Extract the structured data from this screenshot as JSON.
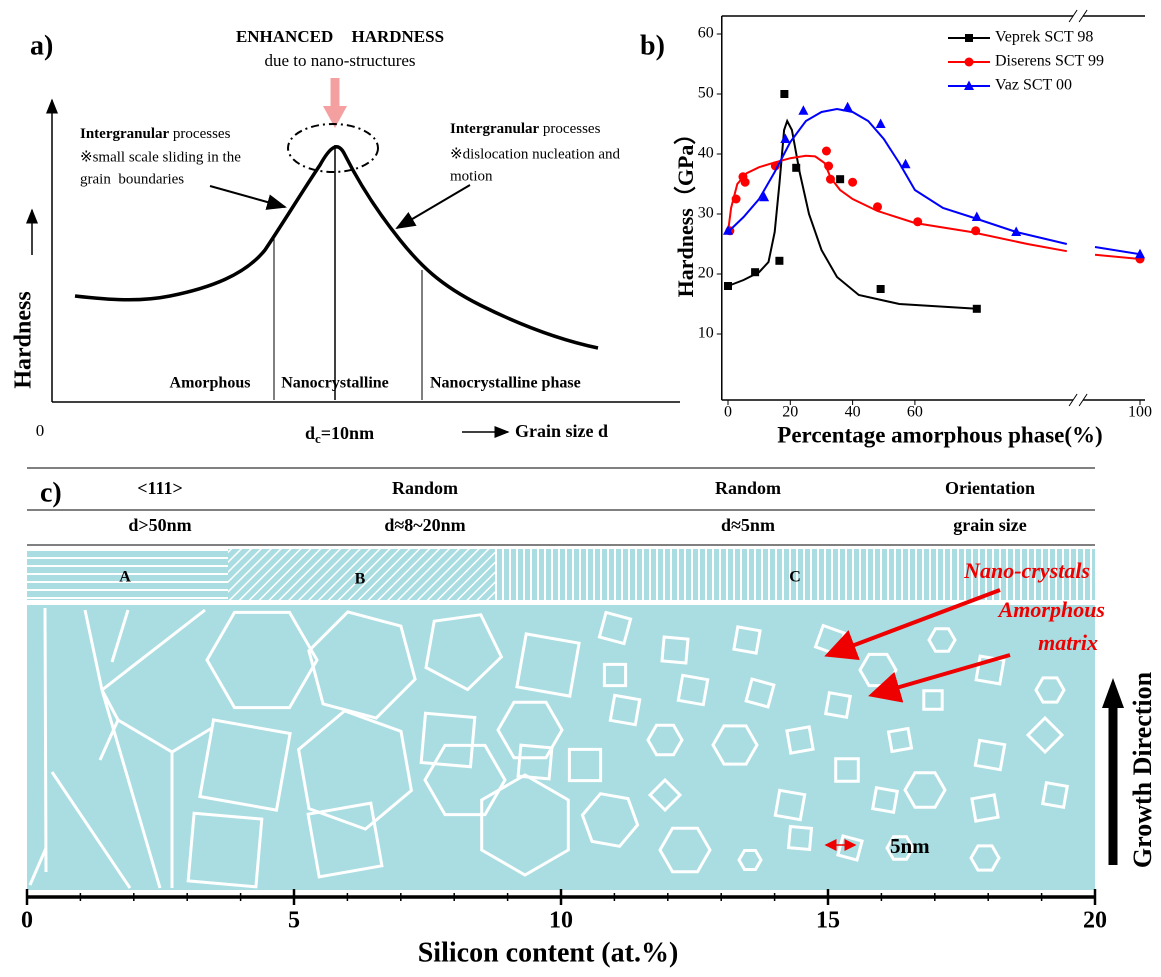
{
  "panel_a": {
    "label": "a)",
    "title": "ENHANCED HARDNESS",
    "subtitle": "due to nano-structures",
    "left_note": {
      "bold": "Intergranular",
      "text": " processes",
      "lines": [
        "※small scale sliding in the",
        "grain  boundaries"
      ]
    },
    "right_note": {
      "bold": "Intergranular",
      "text": " processes",
      "lines": [
        "※dislocation nucleation and",
        "motion"
      ]
    },
    "y_label": "Hardness",
    "regions": [
      "Amorphous",
      "Nanocrystalline",
      "Nanocrystalline phase"
    ],
    "origin": "0",
    "critical_size": {
      "symbol": "d",
      "subscript": "c",
      "text": "=10nm"
    },
    "x_label": "Grain size d"
  },
  "chart_data": [
    {
      "type": "scatter",
      "label": "b)",
      "xlabel": "Percentage amorphous phase(%)",
      "ylabel": "Hardness（GPa）",
      "xlim": [
        -2,
        100
      ],
      "ylim": [
        -1,
        63
      ],
      "xticks": [
        0,
        20,
        40,
        60,
        100
      ],
      "yticks": [
        10,
        20,
        30,
        40,
        50,
        60
      ],
      "x_break": 89,
      "legend": "upper right",
      "series": [
        {
          "name": "Veprek SCT 98",
          "color": "#000000",
          "marker": "square",
          "x": [
            0,
            8.7,
            16.5,
            21.9,
            18.1,
            36,
            49,
            71
          ],
          "values": [
            18,
            20.3,
            22.2,
            37.7,
            50,
            35.8,
            17.5,
            14.2
          ],
          "fit_x": [
            0,
            5,
            10,
            13,
            15,
            16.5,
            18,
            19,
            20.5,
            23,
            26,
            30,
            35,
            42,
            55,
            71
          ],
          "fit_values": [
            18,
            19,
            20.3,
            22,
            27,
            35,
            44,
            45.5,
            44,
            37,
            30,
            24,
            19.5,
            16.5,
            15,
            14.2
          ]
        },
        {
          "name": "Diserens SCT 99",
          "color": "#ff0000",
          "marker": "circle",
          "x": [
            0.6,
            2.6,
            4.8,
            5.5,
            15.2,
            31.6,
            32.3,
            32.9,
            40,
            48,
            60.5,
            70.8,
            100
          ],
          "values": [
            27.2,
            32.5,
            36.2,
            35.3,
            38,
            40.5,
            38,
            35.8,
            35.3,
            31.2,
            28.7,
            27.2,
            22.5
          ],
          "fit_x": [
            0,
            1,
            3,
            6,
            10,
            15,
            20,
            25,
            28,
            31,
            33,
            36,
            40,
            48,
            60,
            70,
            80,
            87,
            89,
            92,
            100
          ],
          "fit_values": [
            27,
            31,
            35,
            36.8,
            37.8,
            38.6,
            39.3,
            39.7,
            39.6,
            38.5,
            36,
            34,
            32.5,
            30.5,
            28.5,
            27,
            25,
            23.8,
            null,
            23.2,
            22.5
          ]
        },
        {
          "name": "Vaz SCT 00",
          "color": "#0000ff",
          "marker": "triangle",
          "x": [
            0,
            11.6,
            18.4,
            24.2,
            38.4,
            49,
            57,
            71,
            78,
            100
          ],
          "values": [
            27.2,
            32.8,
            42.5,
            47.2,
            47.8,
            45,
            38.3,
            29.5,
            27,
            23.3
          ],
          "fit_x": [
            0,
            5,
            10,
            15,
            20,
            25,
            30,
            35,
            40,
            45,
            50,
            55,
            60,
            65,
            70,
            78,
            87,
            89,
            92,
            100
          ],
          "fit_values": [
            27,
            29.5,
            32.5,
            37,
            42,
            45.5,
            47,
            47.5,
            47,
            45.5,
            42.5,
            38.5,
            34,
            31,
            29.5,
            27,
            25,
            null,
            24.5,
            23.3
          ]
        }
      ]
    },
    {
      "type": "axis",
      "xlabel": "Silicon content (at.%)",
      "xlim": [
        0,
        20
      ],
      "xticks": [
        0,
        5,
        10,
        15,
        20
      ]
    }
  ],
  "panel_c": {
    "label": "c)",
    "columns": [
      {
        "orientation": "<111>",
        "grain_size": "d>50nm"
      },
      {
        "orientation": "Random",
        "grain_size": "d≈8~20nm"
      },
      {
        "orientation": "Random",
        "grain_size": "d≈5nm"
      },
      {
        "orientation": "Orientation",
        "grain_size": "grain size"
      }
    ],
    "zones": [
      "A",
      "B",
      "C"
    ],
    "annotations": {
      "nano_crystals": "Nano-crystals",
      "amorphous_matrix": [
        "Amorphous",
        "matrix"
      ],
      "scale": "5nm",
      "growth": "Growth Direction"
    }
  }
}
